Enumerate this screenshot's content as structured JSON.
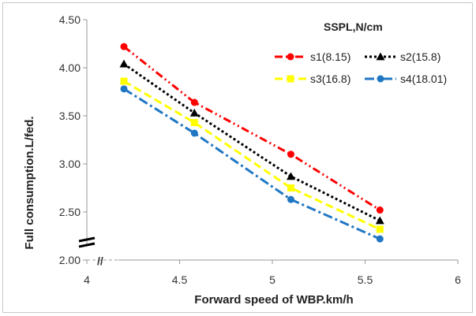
{
  "chart_data": {
    "type": "line",
    "title": "",
    "xlabel": "Forward speed of WBP.km/h",
    "ylabel": "Full consumption.L/fed.",
    "xlim": [
      4,
      6
    ],
    "ylim": [
      2.0,
      4.5
    ],
    "x_ticks": [
      "4",
      "4.5",
      "5",
      "5.5",
      "6"
    ],
    "y_ticks": [
      "2.00",
      "2.50",
      "3.00",
      "3.50",
      "4.00",
      "4.50"
    ],
    "x": [
      4.2,
      4.58,
      5.1,
      5.58
    ],
    "legend_title": "SSPL,N/cm",
    "legend_position": "top-right",
    "grid": false,
    "axis_break": "y",
    "series": [
      {
        "name": "s1(8.15)",
        "values": [
          4.22,
          3.64,
          3.1,
          2.52
        ],
        "color": "#ff0000",
        "marker": "circle",
        "dash": "dash-dot-dot"
      },
      {
        "name": "s2(15.8)",
        "values": [
          4.04,
          3.53,
          2.87,
          2.41
        ],
        "color": "#000000",
        "marker": "triangle",
        "dash": "dot"
      },
      {
        "name": "s3(16.8)",
        "values": [
          3.86,
          3.43,
          2.75,
          2.32
        ],
        "color": "#ffff00",
        "marker": "square",
        "dash": "dash"
      },
      {
        "name": "s4(18.01)",
        "values": [
          3.78,
          3.32,
          2.63,
          2.22
        ],
        "color": "#1f77c4",
        "marker": "circle",
        "dash": "dash-dot"
      }
    ]
  }
}
